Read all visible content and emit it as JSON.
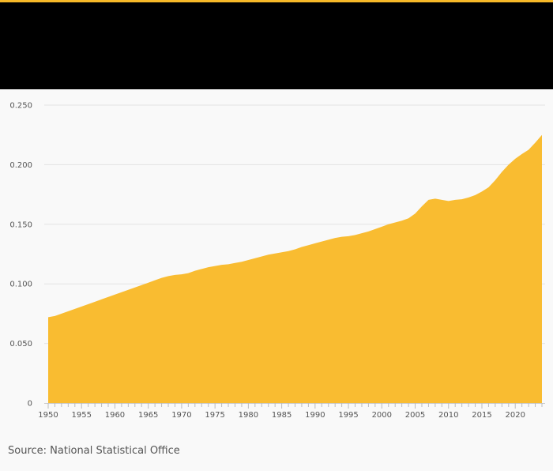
{
  "header": {
    "accent_color": "#f7b928",
    "background_color": "#000000"
  },
  "chart_data": {
    "type": "area",
    "x": [
      1950,
      1951,
      1952,
      1953,
      1954,
      1955,
      1956,
      1957,
      1958,
      1959,
      1960,
      1961,
      1962,
      1963,
      1964,
      1965,
      1966,
      1967,
      1968,
      1969,
      1970,
      1971,
      1972,
      1973,
      1974,
      1975,
      1976,
      1977,
      1978,
      1979,
      1980,
      1981,
      1982,
      1983,
      1984,
      1985,
      1986,
      1987,
      1988,
      1989,
      1990,
      1991,
      1992,
      1993,
      1994,
      1995,
      1996,
      1997,
      1998,
      1999,
      2000,
      2001,
      2002,
      2003,
      2004,
      2005,
      2006,
      2007,
      2008,
      2009,
      2010,
      2011,
      2012,
      2013,
      2014,
      2015,
      2016,
      2017,
      2018,
      2019,
      2020,
      2021,
      2022,
      2023,
      2024
    ],
    "series": [
      {
        "values": [
          0.072,
          0.073,
          0.075,
          0.077,
          0.079,
          0.081,
          0.083,
          0.085,
          0.087,
          0.089,
          0.091,
          0.093,
          0.095,
          0.097,
          0.099,
          0.101,
          0.103,
          0.105,
          0.1065,
          0.1075,
          0.108,
          0.109,
          0.111,
          0.1125,
          0.114,
          0.115,
          0.116,
          0.1165,
          0.1175,
          0.1185,
          0.12,
          0.1215,
          0.123,
          0.1245,
          0.1255,
          0.1265,
          0.1275,
          0.129,
          0.131,
          0.1325,
          0.134,
          0.1355,
          0.137,
          0.1385,
          0.1395,
          0.14,
          0.141,
          0.1425,
          0.144,
          0.146,
          0.148,
          0.15,
          0.1515,
          0.153,
          0.155,
          0.159,
          0.165,
          0.1705,
          0.1715,
          0.1705,
          0.1695,
          0.1705,
          0.171,
          0.1725,
          0.1745,
          0.1775,
          0.181,
          0.187,
          0.194,
          0.2,
          0.205,
          0.209,
          0.2125,
          0.2185,
          0.225
        ],
        "color": "#f9bc31"
      }
    ],
    "ylim": [
      0,
      0.25
    ],
    "yticks": [
      0,
      0.05,
      0.1,
      0.15,
      0.2,
      0.25
    ],
    "ytick_labels": [
      "0",
      "0.050",
      "0.100",
      "0.150",
      "0.200",
      "0.250"
    ],
    "xticks": [
      1950,
      1955,
      1960,
      1965,
      1970,
      1975,
      1980,
      1985,
      1990,
      1995,
      2000,
      2005,
      2010,
      2015,
      2020
    ],
    "xtick_labels": [
      "1950",
      "1955",
      "1960",
      "1965",
      "1970",
      "1975",
      "1980",
      "1985",
      "1990",
      "1995",
      "2000",
      "2005",
      "2010",
      "2015",
      "2020"
    ],
    "xlim": [
      1950,
      2024
    ],
    "grid": true,
    "title": "",
    "xlabel": "",
    "ylabel": ""
  },
  "source": {
    "text": "Source: National Statistical Office"
  }
}
